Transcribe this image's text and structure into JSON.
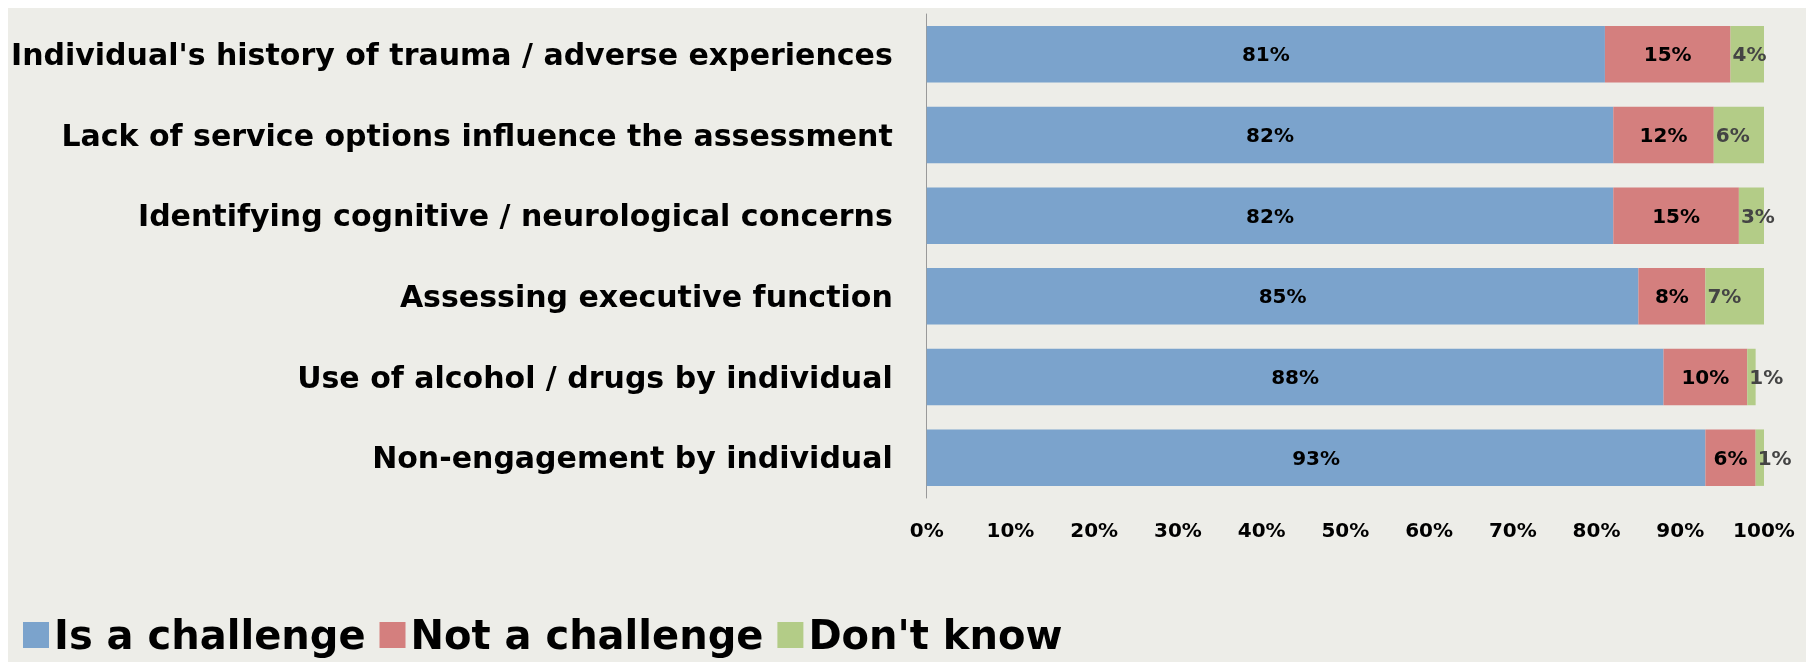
{
  "chart_data": {
    "type": "bar",
    "orientation": "horizontal",
    "stacked": true,
    "categories": [
      "Individual's history of trauma / adverse experiences",
      "Lack of service options influence the assessment",
      "Identifying cognitive / neurological concerns",
      "Assessing executive function",
      "Use of alcohol / drugs by individual",
      "Non-engagement by individual"
    ],
    "series": [
      {
        "name": "Is a challenge",
        "color": "#7ba3cc",
        "values": [
          81,
          82,
          82,
          85,
          88,
          93
        ],
        "value_labels": [
          "81%",
          "82%",
          "82%",
          "85%",
          "88%",
          "93%"
        ]
      },
      {
        "name": "Not a challenge",
        "color": "#d47f7e",
        "values": [
          15,
          12,
          15,
          8,
          10,
          6
        ],
        "value_labels": [
          "15%",
          "12%",
          "15%",
          "8%",
          "10%",
          "6%"
        ]
      },
      {
        "name": "Don't know",
        "color": "#b3cc87",
        "values": [
          4,
          6,
          3,
          7,
          1,
          1
        ],
        "value_labels": [
          "4%",
          "6%",
          "3%",
          "7%",
          "1%",
          "1%"
        ]
      }
    ],
    "xlim": [
      0,
      100
    ],
    "xticks": [
      {
        "value": 0,
        "label": "0%"
      },
      {
        "value": 10,
        "label": "10%"
      },
      {
        "value": 20,
        "label": "20%"
      },
      {
        "value": 30,
        "label": "30%"
      },
      {
        "value": 40,
        "label": "40%"
      },
      {
        "value": 50,
        "label": "50%"
      },
      {
        "value": 60,
        "label": "60%"
      },
      {
        "value": 70,
        "label": "70%"
      },
      {
        "value": 80,
        "label": "80%"
      },
      {
        "value": 90,
        "label": "90%"
      },
      {
        "value": 100,
        "label": "100%"
      }
    ],
    "grid": false,
    "legend": "bottom left"
  }
}
